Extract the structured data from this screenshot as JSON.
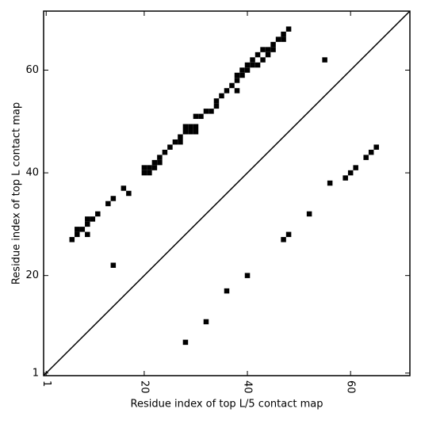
{
  "chart_data": {
    "type": "scatter",
    "x_label": "Residue index of top L/5 contact map",
    "y_label": "Residue index of top L contact map",
    "marker": "square",
    "color": "#000000",
    "x": [
      6,
      7,
      8,
      7,
      9,
      9,
      9,
      10,
      11,
      13,
      14,
      16,
      17,
      14,
      20,
      21,
      20,
      21,
      22,
      22,
      23,
      23,
      24,
      25,
      26,
      27,
      27,
      28,
      29,
      28,
      29,
      30,
      30,
      30,
      31,
      32,
      33,
      34,
      34,
      35,
      36,
      37,
      38,
      38,
      38,
      39,
      39,
      40,
      40,
      41,
      41,
      42,
      42,
      43,
      43,
      44,
      44,
      45,
      45,
      46,
      47,
      47,
      48,
      55,
      28,
      32,
      36,
      40,
      47,
      48,
      52,
      56,
      59,
      60,
      61,
      63,
      64,
      65
    ],
    "y": [
      27,
      29,
      29,
      28,
      28,
      30,
      31,
      31,
      32,
      34,
      35,
      37,
      36,
      22,
      40,
      40,
      41,
      41,
      41,
      42,
      42,
      43,
      44,
      45,
      46,
      46,
      47,
      48,
      48,
      49,
      49,
      48,
      49,
      51,
      51,
      52,
      52,
      53,
      54,
      55,
      56,
      57,
      58,
      59,
      56,
      59,
      60,
      60,
      61,
      61,
      62,
      61,
      63,
      62,
      64,
      63,
      64,
      64,
      65,
      66,
      66,
      67,
      68,
      62,
      7,
      11,
      17,
      20,
      27,
      28,
      32,
      38,
      39,
      40,
      41,
      43,
      44,
      45
    ],
    "xlim": [
      0.5,
      71.5
    ],
    "ylim": [
      0.5,
      71.5
    ],
    "xticks": [
      1,
      20,
      40,
      60
    ],
    "yticks": [
      1,
      20,
      40,
      60
    ]
  }
}
